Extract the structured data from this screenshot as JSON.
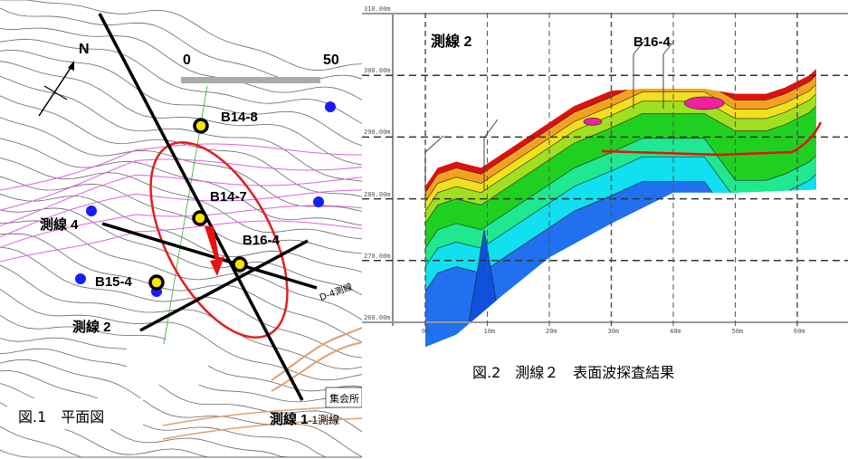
{
  "figure1": {
    "caption": "図.1　平面図",
    "north_label": "N",
    "scale_bar": {
      "start": "0",
      "end": "50"
    },
    "survey_lines": [
      {
        "label": "測線 1",
        "suffix": "-1測線"
      },
      {
        "label": "測線 2"
      },
      {
        "label": "測線 4"
      }
    ],
    "boreholes": [
      "B14-8",
      "B14-7",
      "B16-4",
      "B15-4"
    ],
    "map_labels": {
      "hall": "集会所",
      "line_d4": "D-4測線"
    },
    "colors": {
      "survey_line": "#000000",
      "landslide_outline": "#e02020",
      "borehole": "#f5e600",
      "blue_point": "#1a1aff",
      "contour": "#555555",
      "magenta": "#e060e0"
    }
  },
  "figure2": {
    "caption": "図.2　測線２　表面波探査結果",
    "title": "測線 2",
    "borehole_label": "B16-4",
    "y_ticks": [
      "310.00m",
      "300.00m",
      "290.00m",
      "280.00m",
      "270.00m",
      "260.00m"
    ],
    "x_ticks": [
      "0m",
      "10m",
      "20m",
      "30m",
      "40m",
      "50m",
      "60m"
    ],
    "colors": {
      "high": "#e01010",
      "mid": "#f0e020",
      "low_green": "#20d020",
      "cyan": "#10e0f0",
      "deep": "#2070f0",
      "max": "#f020a0"
    }
  }
}
